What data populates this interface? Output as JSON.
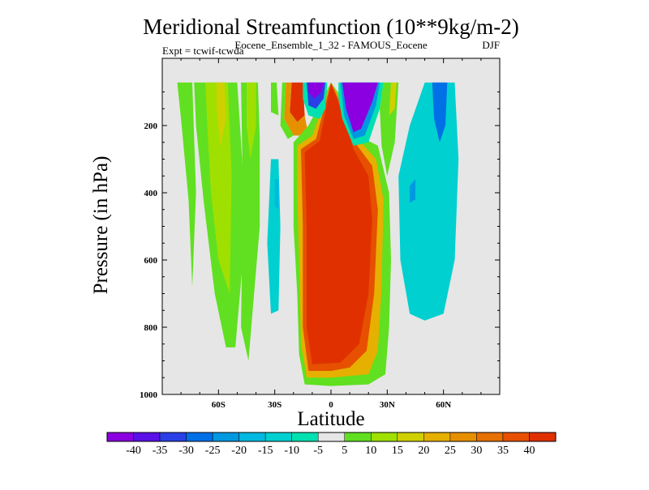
{
  "chart_data": {
    "type": "heatmap",
    "title": "Meridional Streamfunction (10**9kg/m-2)",
    "subtitle": "Eocene_Ensemble_1_32 - FAMOUS_Eocene",
    "expt_label": "Expt = tcwif-tcwda",
    "season": "DJF",
    "xlabel": "Latitude",
    "ylabel": "Pressure (in hPa)",
    "xlim": [
      -90,
      90
    ],
    "ylim": [
      0,
      1000
    ],
    "y_reversed": true,
    "x_ticks": [
      {
        "value": -60,
        "label": "60S"
      },
      {
        "value": -30,
        "label": "30S"
      },
      {
        "value": 0,
        "label": "0"
      },
      {
        "value": 30,
        "label": "30N"
      },
      {
        "value": 60,
        "label": "60N"
      }
    ],
    "y_ticks": [
      {
        "value": 200,
        "label": "200"
      },
      {
        "value": 400,
        "label": "400"
      },
      {
        "value": 600,
        "label": "600"
      },
      {
        "value": 800,
        "label": "800"
      },
      {
        "value": 1000,
        "label": "1000"
      }
    ],
    "colorbar": {
      "labels": [
        "-40",
        "-35",
        "-30",
        "-25",
        "-20",
        "-15",
        "-10",
        "-5",
        "5",
        "10",
        "15",
        "20",
        "25",
        "30",
        "35",
        "40"
      ],
      "colors": [
        "#8a00e0",
        "#5a10e6",
        "#2a40e6",
        "#0070e6",
        "#0098e0",
        "#00b8e0",
        "#00d0d0",
        "#00e0b0",
        "#e6e6e6",
        "#60e020",
        "#a0e000",
        "#d0d000",
        "#e6b000",
        "#e69000",
        "#e67000",
        "#e65000",
        "#e03000"
      ]
    },
    "missing_color": "#e6e6e6",
    "regions": [
      {
        "name": "upper-tropics-negative",
        "level": -40,
        "description_value": "-40 at 10S-20N above 200 hPa"
      },
      {
        "name": "tropical-positive-cell",
        "level": 40,
        "description_value": "40 from 15S to 15N, 200-950 hPa"
      },
      {
        "name": "south-midlat-negative",
        "level": -15,
        "description_value": "-15 near 30S, 350-800 hPa"
      },
      {
        "name": "north-midlat-negative",
        "level": -15,
        "description_value": "-15 from 35N to 60N"
      },
      {
        "name": "south-high-lat-positive",
        "level": 15,
        "description_value": "15 near 60S"
      }
    ]
  }
}
